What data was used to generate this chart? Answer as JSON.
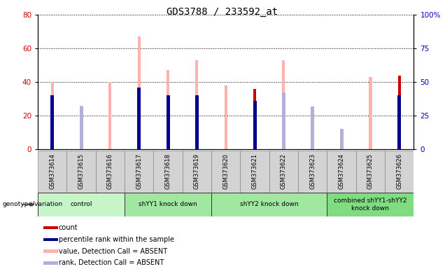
{
  "title": "GDS3788 / 233592_at",
  "samples": [
    "GSM373614",
    "GSM373615",
    "GSM373616",
    "GSM373617",
    "GSM373618",
    "GSM373619",
    "GSM373620",
    "GSM373621",
    "GSM373622",
    "GSM373623",
    "GSM373624",
    "GSM373625",
    "GSM373626"
  ],
  "pink_bars": [
    40,
    26,
    40,
    67,
    47,
    53,
    38,
    null,
    53,
    null,
    8,
    43,
    40
  ],
  "light_blue_squares": [
    null,
    32,
    null,
    46,
    null,
    40,
    null,
    null,
    42,
    32,
    15,
    null,
    null
  ],
  "red_bars": [
    null,
    null,
    null,
    null,
    null,
    null,
    null,
    36,
    null,
    null,
    null,
    null,
    44
  ],
  "dark_blue_squares": [
    40,
    null,
    null,
    46,
    40,
    40,
    null,
    36,
    null,
    null,
    null,
    null,
    40
  ],
  "ylim_left": [
    0,
    80
  ],
  "ylim_right": [
    0,
    100
  ],
  "yticks_left": [
    0,
    20,
    40,
    60,
    80
  ],
  "yticks_right": [
    0,
    25,
    50,
    75,
    100
  ],
  "groups": [
    {
      "label": "control",
      "start": 0,
      "end": 3,
      "color": "#c8f5c8"
    },
    {
      "label": "shYY1 knock down",
      "start": 3,
      "end": 6,
      "color": "#a0e8a0"
    },
    {
      "label": "shYY2 knock down",
      "start": 6,
      "end": 10,
      "color": "#a0e8a0"
    },
    {
      "label": "combined shYY1-shYY2\nknock down",
      "start": 10,
      "end": 13,
      "color": "#80dc80"
    }
  ],
  "legend_items": [
    {
      "color": "#cc0000",
      "label": "count"
    },
    {
      "color": "#00008b",
      "label": "percentile rank within the sample"
    },
    {
      "color": "#ffb0b0",
      "label": "value, Detection Call = ABSENT"
    },
    {
      "color": "#b0b0d8",
      "label": "rank, Detection Call = ABSENT"
    }
  ],
  "left_tick_color": "#cc0000",
  "right_tick_color": "#0000bb",
  "thin_bar_width": 0.12,
  "wide_bar_width": 0.55,
  "tick_bg": "#d3d3d3"
}
